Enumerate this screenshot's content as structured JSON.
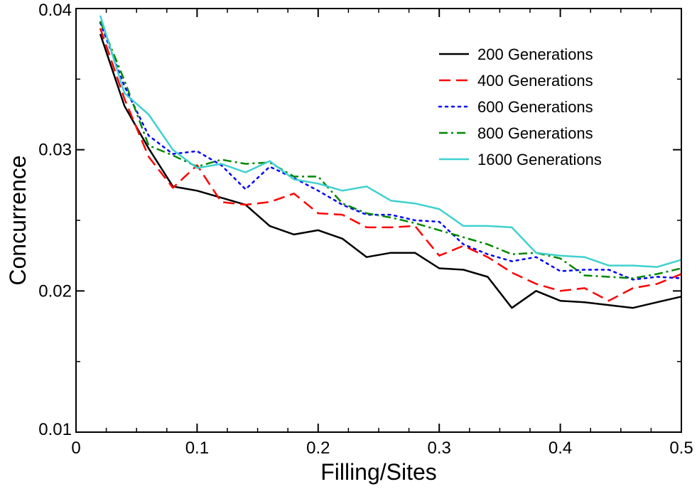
{
  "chart_data": {
    "type": "line",
    "title": "",
    "xlabel": "Filling/Sites",
    "ylabel": "Concurrence",
    "xlim": [
      0,
      0.5
    ],
    "ylim": [
      0.01,
      0.04
    ],
    "xticks": [
      0,
      0.1,
      0.2,
      0.3,
      0.4,
      0.5
    ],
    "xtick_labels": [
      "0",
      "0.1",
      "0.2",
      "0.3",
      "0.4",
      "0.5"
    ],
    "yticks": [
      0.01,
      0.02,
      0.03,
      0.04
    ],
    "ytick_labels": [
      "0.01",
      "0.02",
      "0.03",
      "0.04"
    ],
    "grid": false,
    "legend_position": "top-right",
    "x": [
      0.02,
      0.04,
      0.06,
      0.08,
      0.1,
      0.12,
      0.14,
      0.16,
      0.18,
      0.2,
      0.22,
      0.24,
      0.26,
      0.28,
      0.3,
      0.32,
      0.34,
      0.36,
      0.38,
      0.4,
      0.42,
      0.44,
      0.46,
      0.48,
      0.5
    ],
    "series": [
      {
        "name": "200 Generations",
        "color": "#000000",
        "style": "solid",
        "values": [
          0.0382,
          0.0331,
          0.0301,
          0.0274,
          0.0271,
          0.0266,
          0.0261,
          0.0246,
          0.024,
          0.0243,
          0.0237,
          0.0224,
          0.0227,
          0.0227,
          0.0216,
          0.0215,
          0.021,
          0.0188,
          0.02,
          0.0193,
          0.0192,
          0.019,
          0.0188,
          0.0192,
          0.0196
        ]
      },
      {
        "name": "400 Generations",
        "color": "#ff0000",
        "style": "dashed",
        "values": [
          0.0386,
          0.0336,
          0.0295,
          0.0273,
          0.0289,
          0.0263,
          0.0261,
          0.0263,
          0.0269,
          0.0255,
          0.0254,
          0.0245,
          0.0245,
          0.0246,
          0.0225,
          0.0232,
          0.0224,
          0.0213,
          0.0205,
          0.02,
          0.0202,
          0.0193,
          0.0202,
          0.0205,
          0.0212
        ]
      },
      {
        "name": "600 Generations",
        "color": "#0000ff",
        "style": "dotted",
        "values": [
          0.039,
          0.0345,
          0.031,
          0.0297,
          0.0299,
          0.0289,
          0.0272,
          0.0288,
          0.028,
          0.0271,
          0.0261,
          0.0254,
          0.0254,
          0.025,
          0.0249,
          0.0233,
          0.0226,
          0.0221,
          0.0224,
          0.0214,
          0.0215,
          0.0215,
          0.0208,
          0.021,
          0.0209
        ]
      },
      {
        "name": "800 Generations",
        "color": "#008800",
        "style": "dashdot",
        "values": [
          0.0391,
          0.0349,
          0.0303,
          0.0296,
          0.0288,
          0.0293,
          0.029,
          0.0291,
          0.0281,
          0.0281,
          0.0262,
          0.0255,
          0.0252,
          0.0248,
          0.0243,
          0.0238,
          0.0233,
          0.0226,
          0.0227,
          0.0223,
          0.0211,
          0.021,
          0.0209,
          0.0212,
          0.0216
        ]
      },
      {
        "name": "1600 Generations",
        "color": "#40d0d0",
        "style": "solid",
        "values": [
          0.0395,
          0.034,
          0.0325,
          0.03,
          0.0287,
          0.029,
          0.0284,
          0.0292,
          0.0279,
          0.0276,
          0.0271,
          0.0274,
          0.0264,
          0.0262,
          0.0258,
          0.0246,
          0.0246,
          0.0245,
          0.0227,
          0.0225,
          0.0224,
          0.0218,
          0.0218,
          0.0217,
          0.0222
        ]
      }
    ]
  }
}
